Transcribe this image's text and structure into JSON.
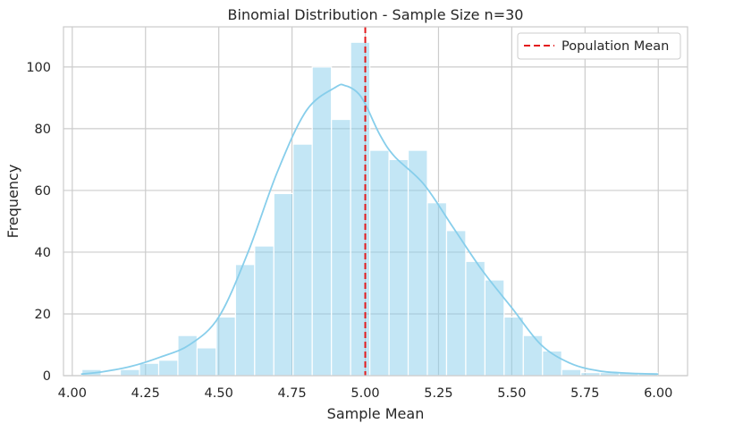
{
  "chart_data": {
    "type": "bar",
    "title": "Binomial Distribution - Sample Size n=30",
    "xlabel": "Sample Mean",
    "ylabel": "Frequency",
    "xlim": [
      3.97,
      6.1
    ],
    "ylim": [
      0,
      113
    ],
    "xticks": [
      4.0,
      4.25,
      4.5,
      4.75,
      5.0,
      5.25,
      5.5,
      5.75,
      6.0
    ],
    "xtick_labels": [
      "4.00",
      "4.25",
      "4.50",
      "4.75",
      "5.00",
      "5.25",
      "5.50",
      "5.75",
      "6.00"
    ],
    "yticks": [
      0,
      20,
      40,
      60,
      80,
      100
    ],
    "ytick_labels": [
      "0",
      "20",
      "40",
      "60",
      "80",
      "100"
    ],
    "grid": true,
    "bin_start": 4.033,
    "bin_width": 0.0655,
    "histogram_values": [
      2,
      0,
      2,
      4,
      5,
      13,
      9,
      19,
      36,
      42,
      59,
      75,
      100,
      83,
      108,
      73,
      70,
      73,
      56,
      47,
      37,
      31,
      19,
      13,
      8,
      2,
      1,
      1,
      1,
      1
    ],
    "kde": {
      "x": [
        4.03,
        4.1,
        4.2,
        4.3,
        4.4,
        4.5,
        4.6,
        4.7,
        4.8,
        4.9,
        4.93,
        4.97,
        5.0,
        5.05,
        5.1,
        5.2,
        5.3,
        5.4,
        5.5,
        5.6,
        5.7,
        5.8,
        5.9,
        6.0
      ],
      "y": [
        0.5,
        1.2,
        3,
        6,
        10,
        19,
        40,
        66,
        86,
        93.5,
        94,
        92,
        88,
        78,
        71,
        62,
        48,
        34,
        22,
        10,
        4,
        1.5,
        0.8,
        0.5
      ]
    },
    "reference_line": {
      "name": "Population Mean",
      "x": 5.0
    },
    "legend": {
      "placement": "top-right",
      "entries": [
        "Population Mean"
      ]
    },
    "colors": {
      "bar": "#87ceeb",
      "kde": "#87ceeb",
      "mean_line": "#e31a1c",
      "grid": "#cccccc",
      "frame": "#cccccc",
      "text": "#262626"
    }
  }
}
